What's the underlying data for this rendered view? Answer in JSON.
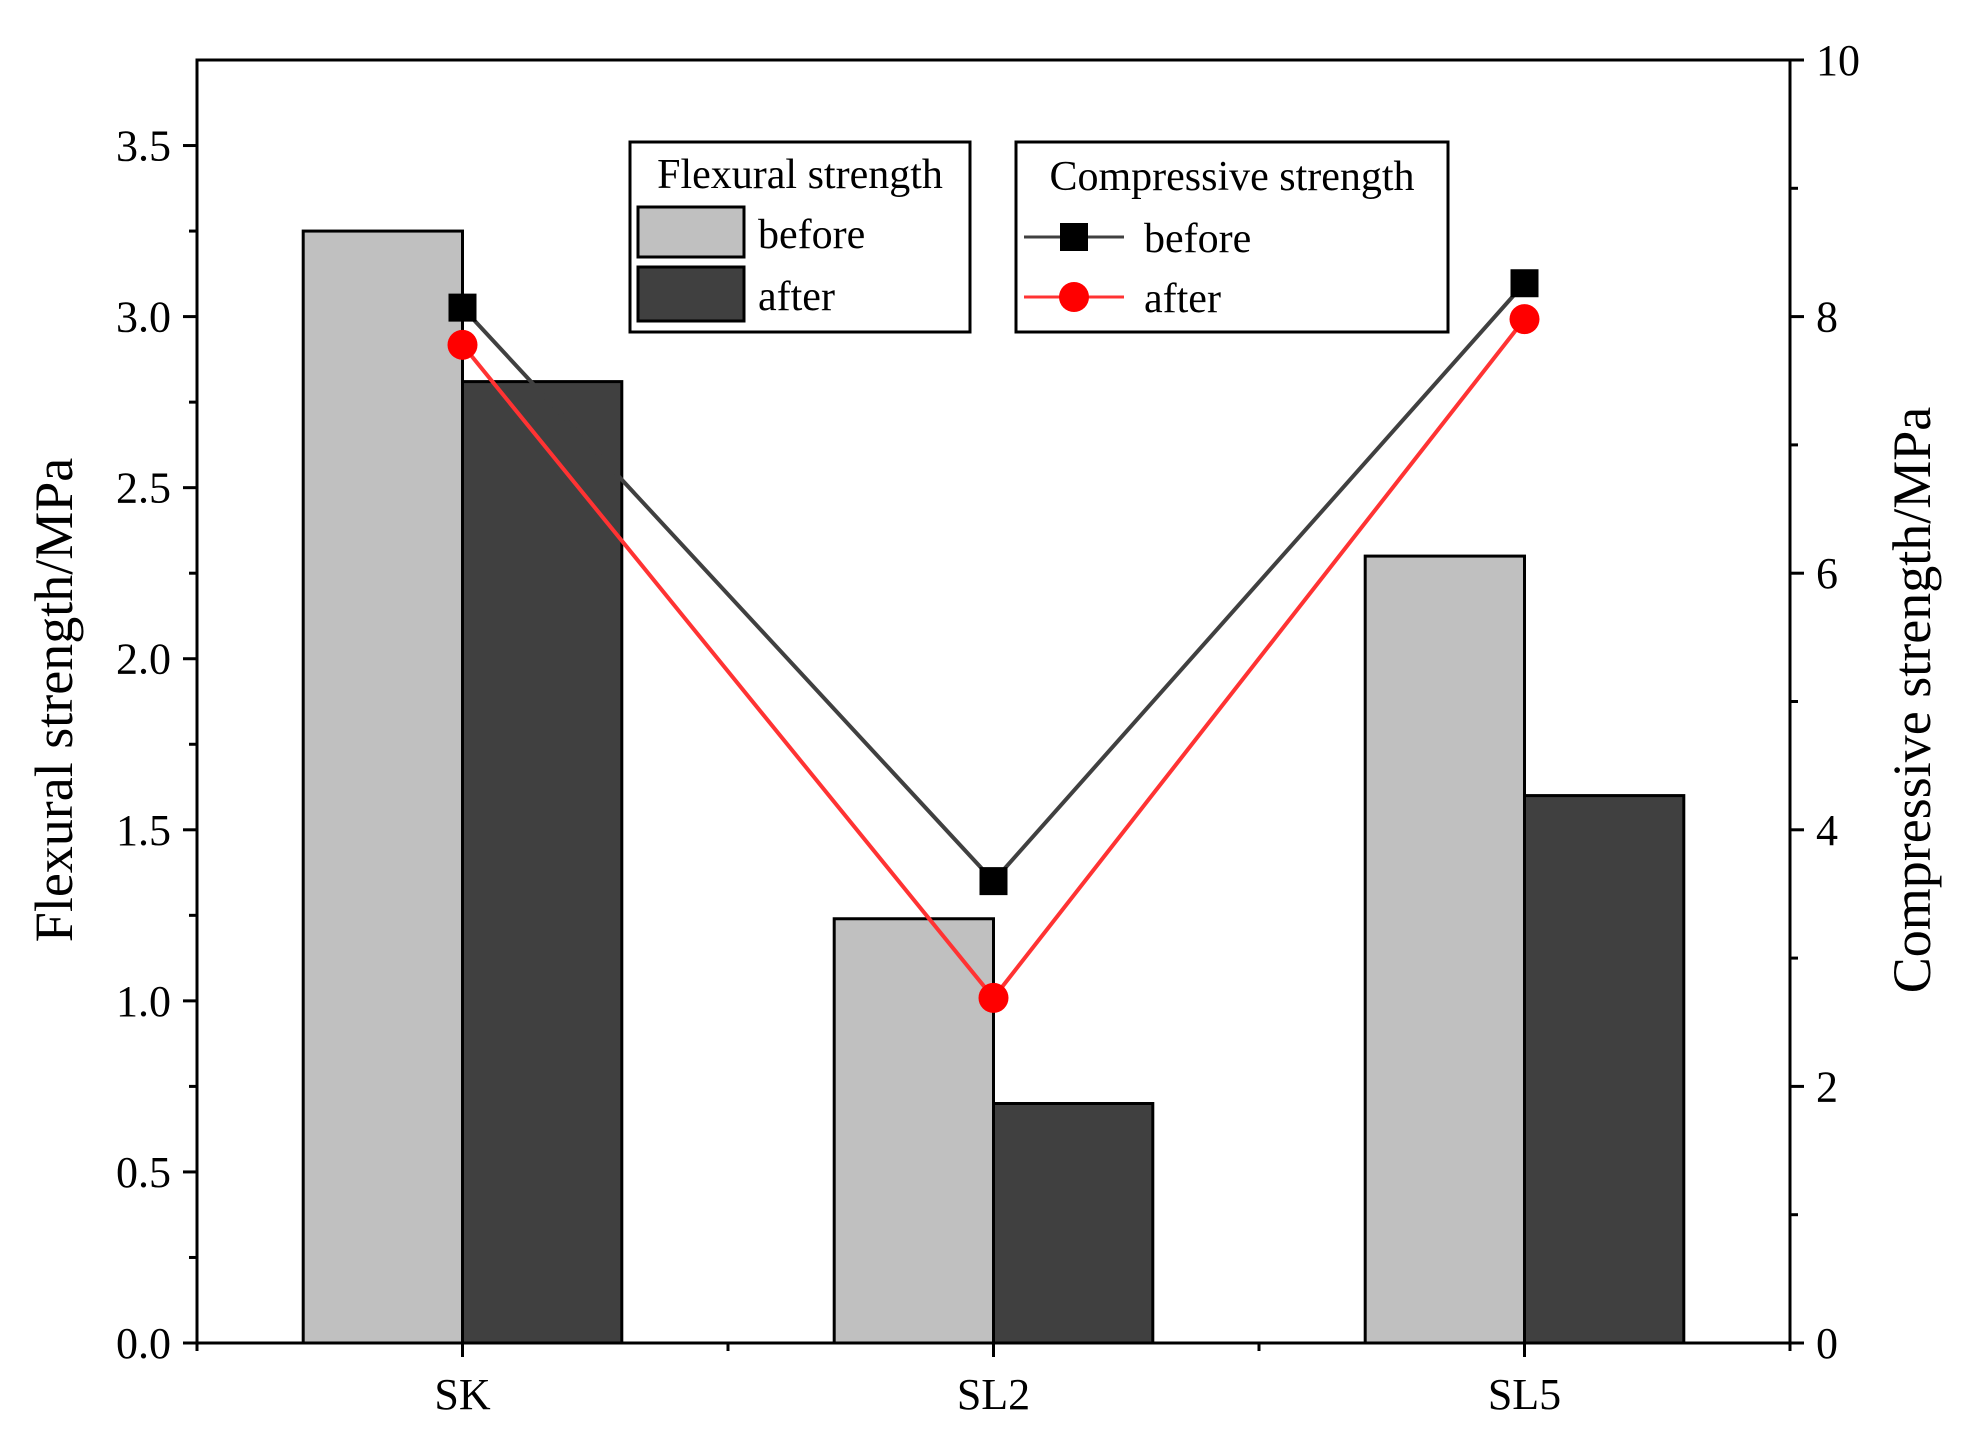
{
  "chart_data": {
    "type": "bar+line",
    "categories": [
      "SK",
      "SL2",
      "SL5"
    ],
    "y_left": {
      "label": "Flexural strength/MPa",
      "range": [
        0,
        3.75
      ],
      "ticks": [
        0.0,
        0.5,
        1.0,
        1.5,
        2.0,
        2.5,
        3.0,
        3.5
      ],
      "tick_labels": [
        "0.0",
        "0.5",
        "1.0",
        "1.5",
        "2.0",
        "2.5",
        "3.0",
        "3.5"
      ]
    },
    "y_right": {
      "label": "Compressive strength/MPa",
      "range": [
        0,
        10
      ],
      "ticks": [
        0,
        2,
        4,
        6,
        8,
        10
      ],
      "tick_labels": [
        "0",
        "2",
        "4",
        "6",
        "8",
        "10"
      ]
    },
    "grid": false,
    "bar_series": [
      {
        "name": "before",
        "values": [
          3.25,
          1.24,
          2.3
        ],
        "color": "#c0c0c0"
      },
      {
        "name": "after",
        "values": [
          2.81,
          0.7,
          1.6
        ],
        "color": "#404040"
      }
    ],
    "line_series": [
      {
        "name": "before",
        "values": [
          8.07,
          3.6,
          8.26
        ],
        "color": "#404040",
        "marker": "square",
        "marker_color": "#000000"
      },
      {
        "name": "after",
        "values": [
          7.78,
          2.69,
          7.98
        ],
        "color": "#ff3333",
        "marker": "circle",
        "marker_color": "#ff0000"
      }
    ],
    "legends": [
      {
        "title": "Flexural strength",
        "placement": "top-center",
        "entries": [
          "before",
          "after"
        ]
      },
      {
        "title": "Compressive strength",
        "placement": "top-center-right",
        "entries": [
          "before",
          "after"
        ]
      }
    ]
  }
}
